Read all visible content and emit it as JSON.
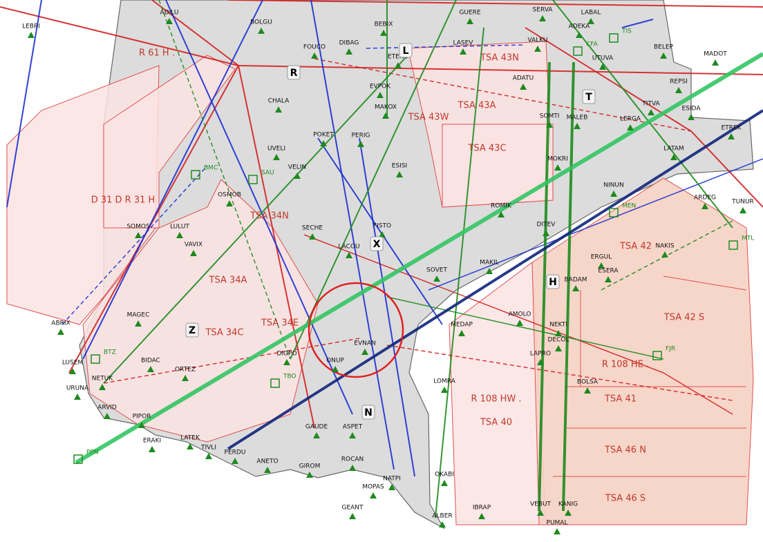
{
  "waypoints": [
    "LEBRI",
    "ADILU",
    "BOLGU",
    "GUERE",
    "BEBIX",
    "SERVA",
    "LABAL",
    "FOUCO",
    "DIBAG",
    "ETENU",
    "LASEV",
    "VALKU",
    "ADEKA",
    "UTUVA",
    "BELEP",
    "MADOT",
    "ADATU",
    "REPSI",
    "EVPOK",
    "MAKOX",
    "SOMTI",
    "MALEB",
    "TITVA",
    "ESIDA",
    "CHALA",
    "LERGA",
    "ETREK",
    "POKET",
    "PERIG",
    "UVELI",
    "VELIN",
    "ESISI",
    "LATAM",
    "MOKRI",
    "OSMOB",
    "NINUN",
    "ARDEG",
    "TUNUR",
    "ROMIK",
    "SOMOS",
    "LULUT",
    "FISTO",
    "SECHE",
    "DITEV",
    "VAVIX",
    "LACOU",
    "NAKIS",
    "SOVET",
    "MAKIL",
    "ERGUL",
    "ESERA",
    "BADAM",
    "MEDAP",
    "AMOLO",
    "NEKTI",
    "DECOL",
    "ABRIX",
    "MAGEC",
    "LUSEM",
    "BIDAC",
    "NETUK",
    "URUNA",
    "ORTEZ",
    "DIGPO",
    "ONUP",
    "EVNAN",
    "LAPRO",
    "LOMRA",
    "BOLSA",
    "ARVID",
    "PIPOR",
    "ERAKI",
    "LATEK",
    "GAUDE",
    "ASPET",
    "TIVLI",
    "PERDU",
    "ANETO",
    "GIROM",
    "ROCAN",
    "OKABI",
    "NATPI",
    "MOPAS",
    "GEANT",
    "IBRAP",
    "ALBER",
    "VEBUT",
    "KANIG",
    "PUMAL"
  ],
  "navaids": [
    "TIS",
    "CFA",
    "BMC",
    "SAU",
    "MEN",
    "MTL",
    "FJR",
    "TBO",
    "PPN",
    "BTZ"
  ],
  "areas": [
    "R 61 H .",
    "TSA 43N",
    "TSA 43A",
    "TSA 43W",
    "TSA 43C",
    "D 31 D R 31 H",
    "TSA 34N",
    "TSA 34A",
    "TSA 34C",
    "TSA 34E",
    "TSA 42",
    "TSA 42 S",
    "R 108 HE .",
    "TSA 41",
    "R 108 HW .",
    "TSA 40",
    "TSA 46 N",
    "TSA 46 S"
  ],
  "sectors": [
    "R",
    "L",
    "T",
    "X",
    "H",
    "Z",
    "N"
  ]
}
